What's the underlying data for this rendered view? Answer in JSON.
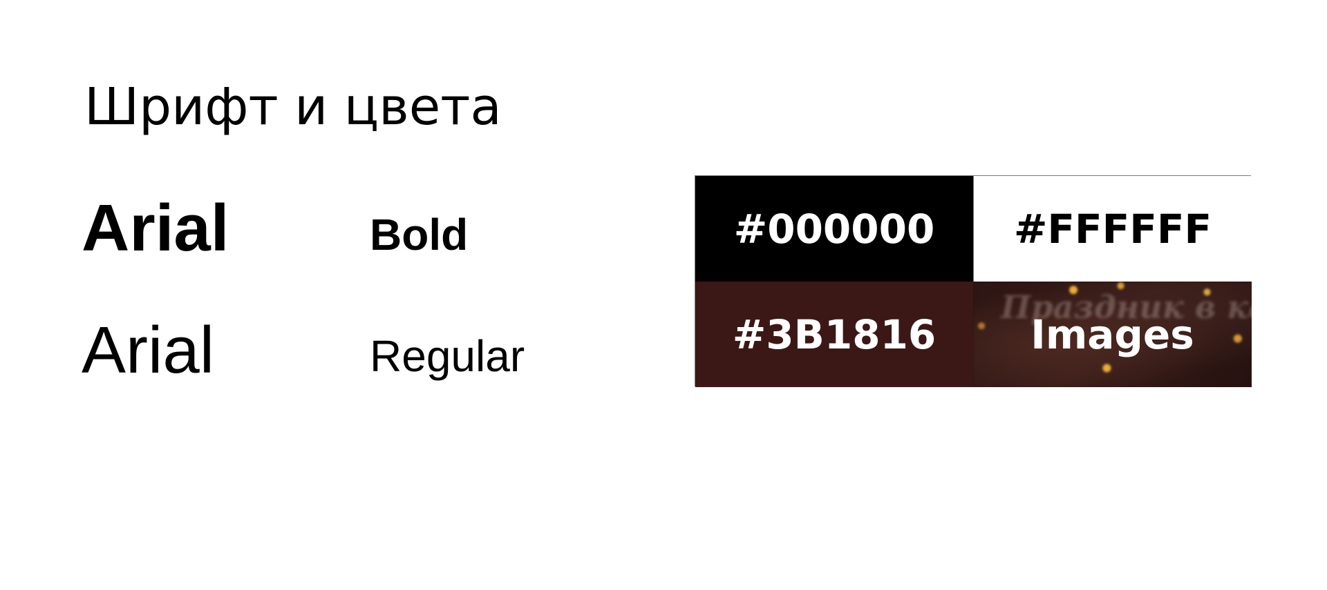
{
  "title": "Шрифт и цвета",
  "fonts": [
    {
      "name": "Arial",
      "style": "Bold"
    },
    {
      "name": "Arial",
      "style": "Regular"
    }
  ],
  "swatches": {
    "black": {
      "label": "#000000",
      "color": "#000000"
    },
    "white": {
      "label": "#FFFFFF",
      "color": "#FFFFFF"
    },
    "brown": {
      "label": "#3B1816",
      "color": "#3B1816"
    },
    "images": {
      "label": "Images",
      "background_text": "Праздник в каждый дом"
    }
  }
}
